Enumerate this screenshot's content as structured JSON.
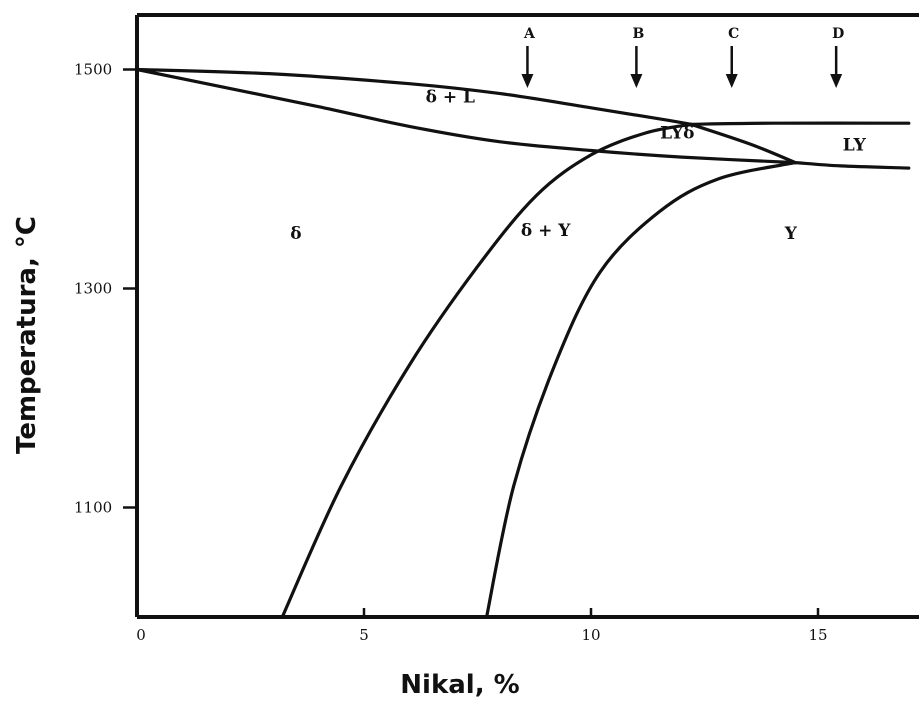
{
  "chart_data": {
    "type": "line",
    "xlabel": "Nikal, %",
    "ylabel": "Temperatura, °C",
    "xlim": [
      0,
      17
    ],
    "ylim": [
      1000,
      1550
    ],
    "x_ticks": [
      0,
      5,
      10,
      15
    ],
    "y_ticks": [
      1100,
      1300,
      1500
    ],
    "grid": false,
    "legend": "none",
    "line_color": "#111111",
    "series": [
      {
        "points": [
          [
            0,
            1500
          ],
          [
            3,
            1496
          ],
          [
            6,
            1487
          ],
          [
            8,
            1478
          ],
          [
            10,
            1465
          ],
          [
            11.5,
            1455
          ],
          [
            12.2,
            1450
          ]
        ]
      },
      {
        "points": [
          [
            0,
            1500
          ],
          [
            2,
            1483
          ],
          [
            4,
            1466
          ],
          [
            6,
            1448
          ],
          [
            8,
            1434
          ],
          [
            10,
            1426
          ],
          [
            12,
            1420
          ],
          [
            14.5,
            1415
          ]
        ]
      },
      {
        "points": [
          [
            12.2,
            1450
          ],
          [
            13.5,
            1432
          ],
          [
            14.5,
            1415
          ]
        ]
      },
      {
        "points": [
          [
            12.2,
            1450
          ],
          [
            14,
            1451
          ],
          [
            17,
            1451
          ]
        ]
      },
      {
        "points": [
          [
            14.5,
            1415
          ],
          [
            15.5,
            1412
          ],
          [
            17,
            1410
          ]
        ]
      },
      {
        "points": [
          [
            3.2,
            1000
          ],
          [
            4.5,
            1120
          ],
          [
            6,
            1230
          ],
          [
            7.5,
            1320
          ],
          [
            8.8,
            1385
          ],
          [
            10,
            1422
          ],
          [
            11.2,
            1442
          ],
          [
            12.2,
            1450
          ]
        ]
      },
      {
        "points": [
          [
            7.7,
            1000
          ],
          [
            8.3,
            1120
          ],
          [
            9.2,
            1230
          ],
          [
            10.2,
            1315
          ],
          [
            11.5,
            1370
          ],
          [
            12.8,
            1400
          ],
          [
            14.5,
            1415
          ]
        ]
      }
    ],
    "annotations": [
      {
        "text": "δ + L",
        "x": 6.9,
        "y": 1470
      },
      {
        "text": "LYδ",
        "x": 11.9,
        "y": 1437
      },
      {
        "text": "LY",
        "x": 15.8,
        "y": 1426
      },
      {
        "text": "δ",
        "x": 3.5,
        "y": 1345
      },
      {
        "text": "δ + Y",
        "x": 9.0,
        "y": 1348
      },
      {
        "text": "Y",
        "x": 14.4,
        "y": 1345
      }
    ],
    "markers": [
      {
        "label": "A",
        "x": 8.6
      },
      {
        "label": "B",
        "x": 11.0
      },
      {
        "label": "C",
        "x": 13.1
      },
      {
        "label": "D",
        "x": 15.4
      }
    ]
  }
}
